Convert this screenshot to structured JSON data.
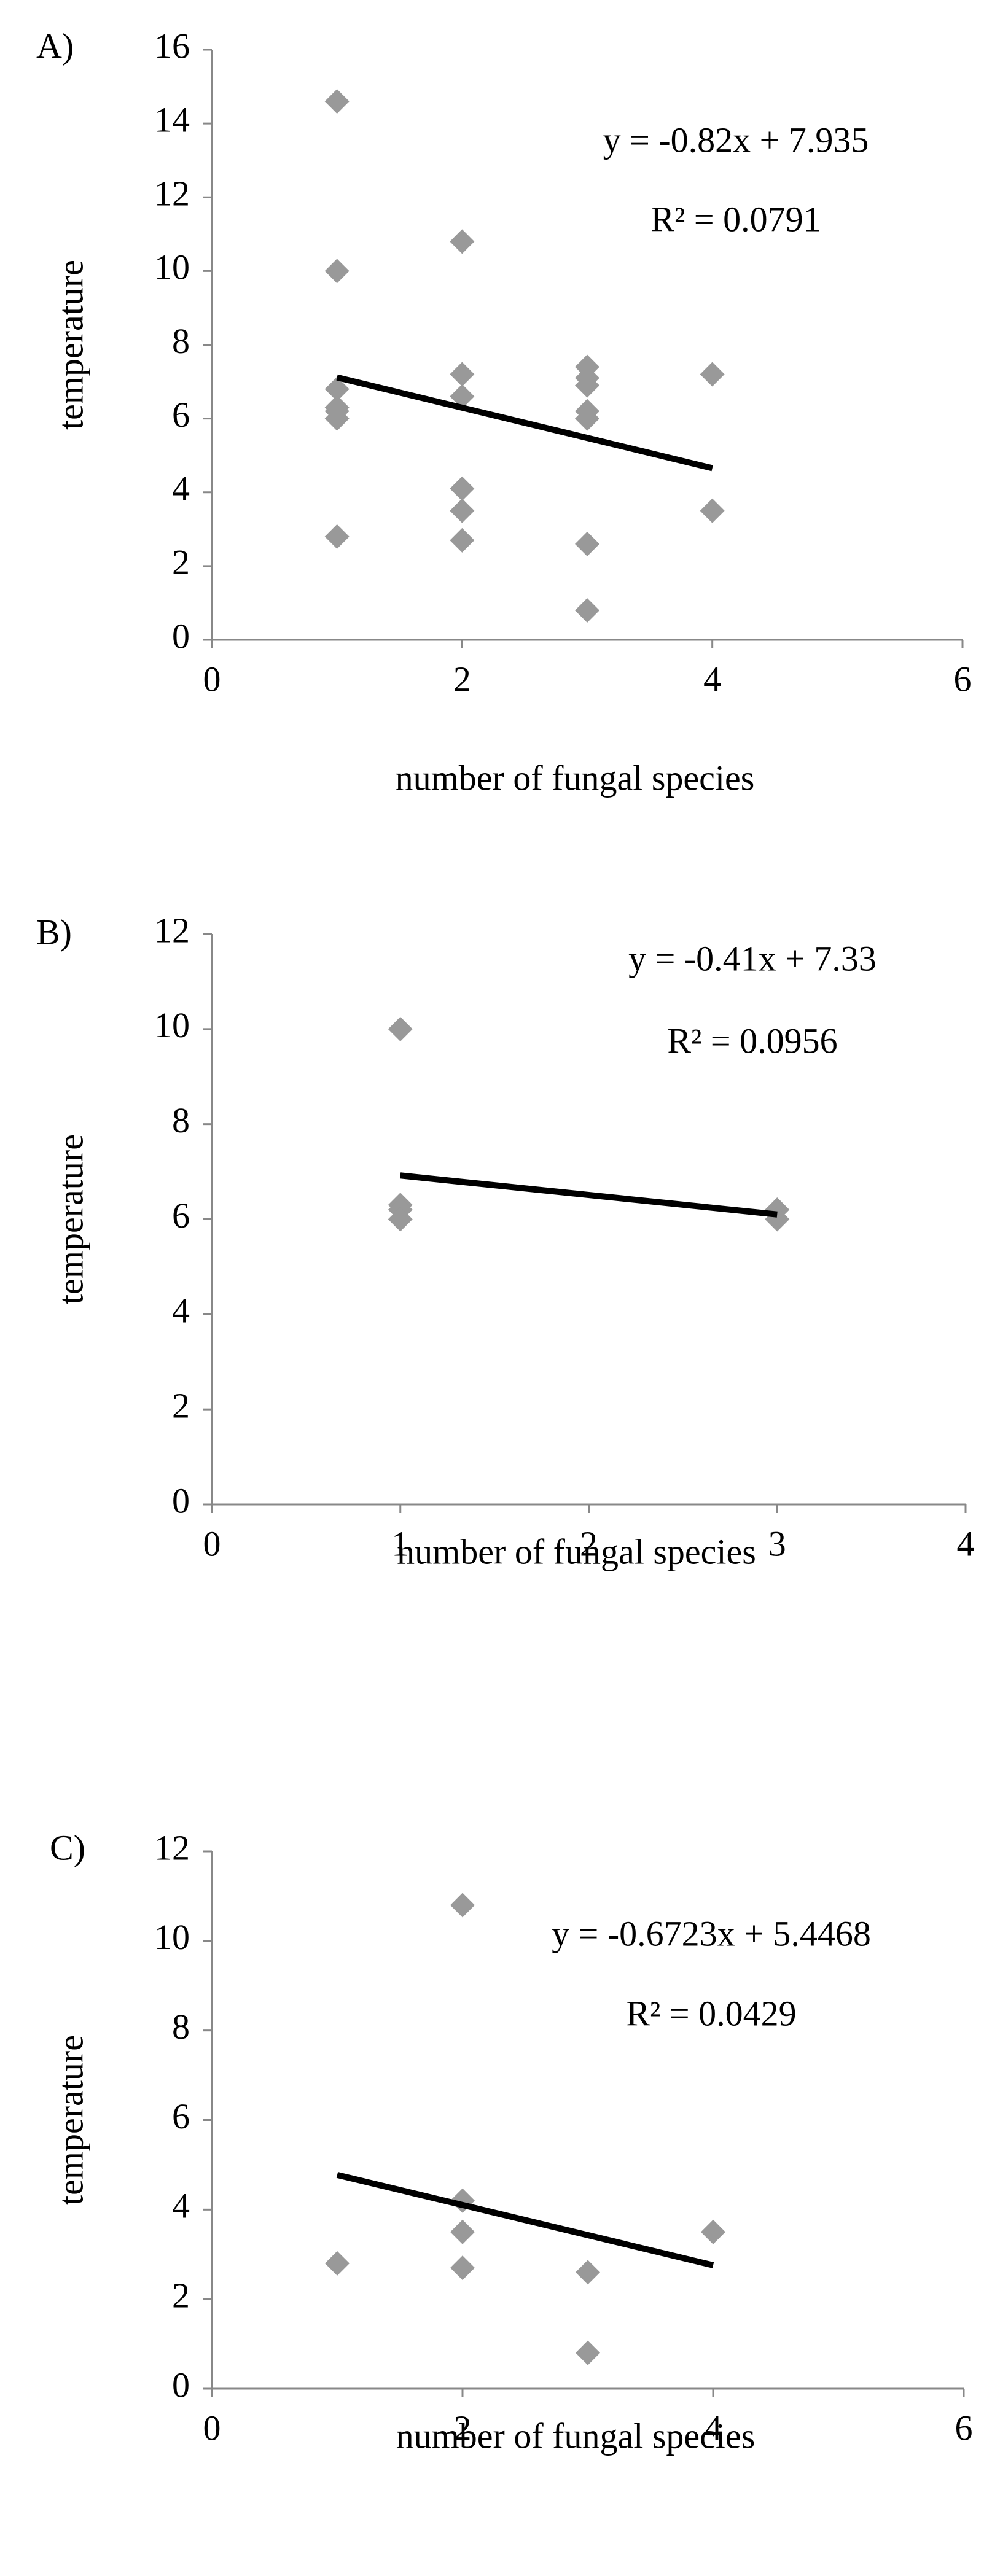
{
  "chart_data": [
    {
      "type": "scatter",
      "panel_label": "A)",
      "x_label": "number of fungal species",
      "y_label": "temperature",
      "xlim": [
        0,
        6
      ],
      "xticks": [
        0,
        2,
        4,
        6
      ],
      "ylim": [
        0,
        16
      ],
      "yticks": [
        0,
        2,
        4,
        6,
        8,
        10,
        12,
        14,
        16
      ],
      "color": "#999999",
      "x": [
        1,
        1,
        1,
        1,
        1,
        1,
        1,
        2,
        2,
        2,
        2,
        2,
        2,
        3,
        3,
        3,
        3,
        3,
        3,
        3,
        4,
        4
      ],
      "values": [
        14.6,
        10,
        6.8,
        6.3,
        6.2,
        6.0,
        2.8,
        10.8,
        7.2,
        6.6,
        4.1,
        3.5,
        2.7,
        7.4,
        7.1,
        6.9,
        6.2,
        6.0,
        2.6,
        0.8,
        7.2,
        3.5
      ],
      "trendline": {
        "color": "#000000",
        "x": [
          1,
          4
        ],
        "values": [
          7.115,
          4.655
        ]
      },
      "annotations": [
        "y = -0.82x + 7.935",
        "R² = 0.0791"
      ]
    },
    {
      "type": "scatter",
      "panel_label": "B)",
      "x_label": "number of fungal species",
      "y_label": "temperature",
      "xlim": [
        0,
        4
      ],
      "xticks": [
        0,
        1,
        2,
        3,
        4
      ],
      "ylim": [
        0,
        12
      ],
      "yticks": [
        0,
        2,
        4,
        6,
        8,
        10,
        12
      ],
      "color": "#999999",
      "x": [
        1,
        1,
        1,
        1,
        3,
        3
      ],
      "values": [
        10,
        6.3,
        6.2,
        6.0,
        6.2,
        6.0
      ],
      "trendline": {
        "color": "#000000",
        "x": [
          1,
          3
        ],
        "values": [
          6.92,
          6.1
        ]
      },
      "annotations": [
        "y = -0.41x + 7.33",
        "R² = 0.0956"
      ]
    },
    {
      "type": "scatter",
      "panel_label": "C)",
      "x_label": "number of fungal species",
      "y_label": "temperature",
      "xlim": [
        0,
        6
      ],
      "xticks": [
        0,
        2,
        4,
        6
      ],
      "ylim": [
        0,
        12
      ],
      "yticks": [
        0,
        2,
        4,
        6,
        8,
        10,
        12
      ],
      "color": "#999999",
      "x": [
        1,
        2,
        2,
        2,
        2,
        3,
        3,
        4
      ],
      "values": [
        2.8,
        10.8,
        4.2,
        3.5,
        2.7,
        2.6,
        0.8,
        3.5
      ],
      "trendline": {
        "color": "#000000",
        "x": [
          1,
          4
        ],
        "values": [
          4.7745,
          2.7576
        ]
      },
      "annotations": [
        "y = -0.6723x + 5.4468",
        "R² = 0.0429"
      ]
    }
  ]
}
